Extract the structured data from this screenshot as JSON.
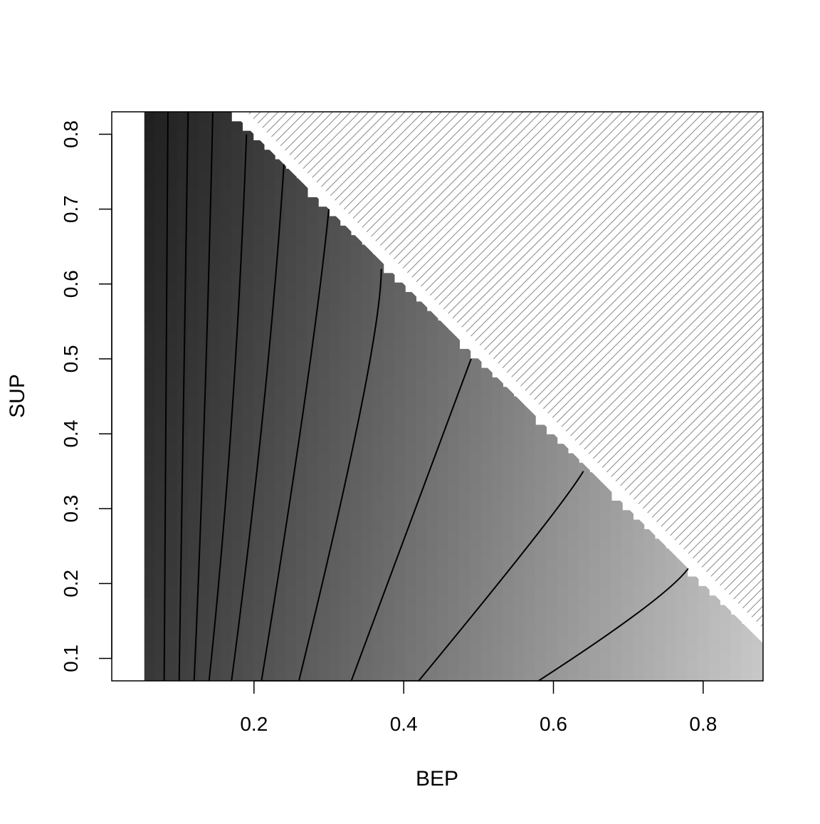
{
  "chart_data": {
    "type": "contour",
    "xlabel": "BEP",
    "ylabel": "SUP",
    "xlim": [
      0.01,
      0.88
    ],
    "ylim": [
      0.07,
      0.83
    ],
    "x_ticks": [
      "0.2",
      "0.4",
      "0.6",
      "0.8"
    ],
    "y_ticks": [
      "0.1",
      "0.2",
      "0.3",
      "0.4",
      "0.5",
      "0.6",
      "0.7",
      "0.8"
    ],
    "x_tick_values": [
      0.2,
      0.4,
      0.6,
      0.8
    ],
    "y_tick_values": [
      0.1,
      0.2,
      0.3,
      0.4,
      0.5,
      0.6,
      0.7,
      0.8
    ],
    "infeasible_region": "BEP + SUP > 1 (hatched)",
    "fill": "grayscale, darker toward low BEP, lighter toward high BEP / low SUP",
    "contours": [
      {
        "bep_at_sup": [
          [
            0.08,
            0.07
          ],
          [
            0.082,
            0.45
          ],
          [
            0.085,
            0.83
          ]
        ]
      },
      {
        "bep_at_sup": [
          [
            0.1,
            0.07
          ],
          [
            0.105,
            0.4
          ],
          [
            0.112,
            0.83
          ]
        ]
      },
      {
        "bep_at_sup": [
          [
            0.12,
            0.07
          ],
          [
            0.135,
            0.4
          ],
          [
            0.145,
            0.83
          ]
        ]
      },
      {
        "bep_at_sup": [
          [
            0.14,
            0.07
          ],
          [
            0.175,
            0.4
          ],
          [
            0.19,
            0.8
          ]
        ]
      },
      {
        "bep_at_sup": [
          [
            0.17,
            0.07
          ],
          [
            0.22,
            0.45
          ],
          [
            0.24,
            0.76
          ]
        ]
      },
      {
        "bep_at_sup": [
          [
            0.21,
            0.07
          ],
          [
            0.28,
            0.5
          ],
          [
            0.3,
            0.7
          ]
        ]
      },
      {
        "bep_at_sup": [
          [
            0.26,
            0.07
          ],
          [
            0.37,
            0.52
          ],
          [
            0.37,
            0.62
          ]
        ]
      },
      {
        "bep_at_sup": [
          [
            0.33,
            0.07
          ],
          [
            0.46,
            0.42
          ],
          [
            0.49,
            0.5
          ]
        ]
      },
      {
        "bep_at_sup": [
          [
            0.42,
            0.07
          ],
          [
            0.61,
            0.3
          ],
          [
            0.64,
            0.35
          ]
        ]
      },
      {
        "bep_at_sup": [
          [
            0.58,
            0.07
          ],
          [
            0.75,
            0.18
          ],
          [
            0.78,
            0.22
          ]
        ]
      }
    ]
  }
}
